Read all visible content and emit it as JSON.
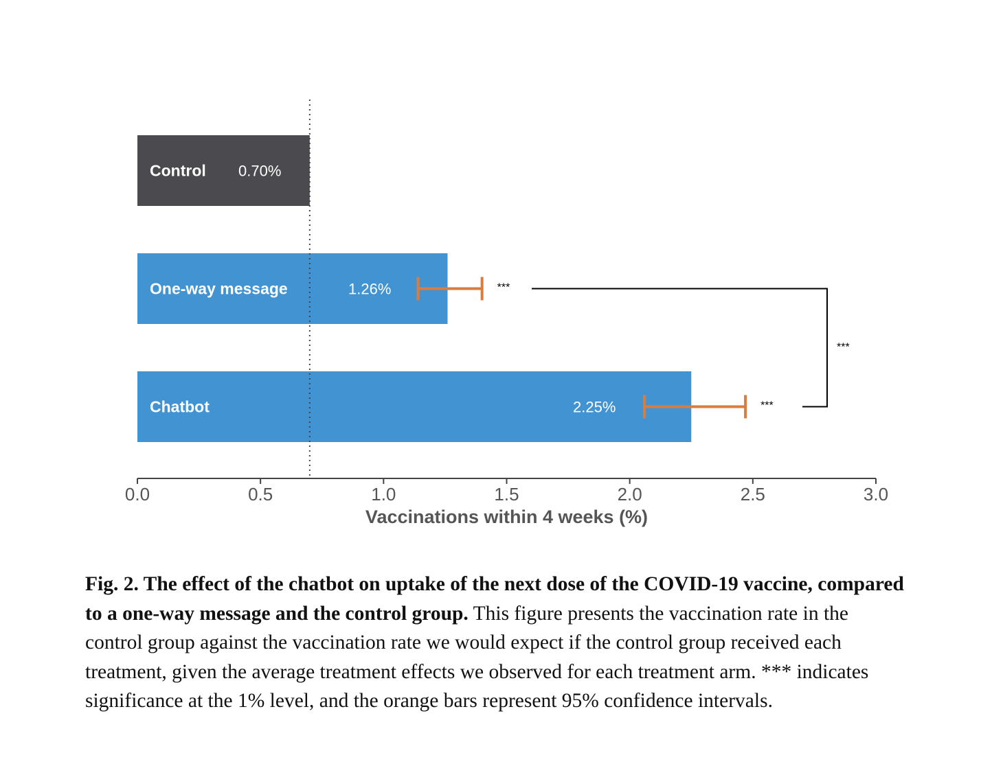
{
  "chart_data": {
    "type": "bar",
    "orientation": "horizontal",
    "categories": [
      "Control",
      "One-way message",
      "Chatbot"
    ],
    "values": [
      0.7,
      1.26,
      2.25
    ],
    "value_labels": [
      "0.70%",
      "1.26%",
      "2.25%"
    ],
    "ci_95": [
      null,
      [
        1.14,
        1.4
      ],
      [
        2.06,
        2.47
      ]
    ],
    "significance_vs_control": [
      "",
      "***",
      "***"
    ],
    "bracket": {
      "between": [
        "One-way message",
        "Chatbot"
      ],
      "label": "***"
    },
    "reference_line": 0.7,
    "xlabel": "Vaccinations within 4 weeks (%)",
    "xlim": [
      0.0,
      3.0
    ],
    "xticks": [
      "0.0",
      "0.5",
      "1.0",
      "1.5",
      "2.0",
      "2.5",
      "3.0"
    ],
    "colors": {
      "control": "#4a4a4f",
      "treatment": "#4293d1",
      "ci": "#d97c40",
      "axis": "#444444"
    }
  },
  "caption": {
    "bold": "Fig. 2. The effect of the chatbot on uptake of the next dose of the COVID-19 vaccine, compared to a one-way message and the control group.",
    "text": " This figure presents the vaccination rate in the control group against the vaccination rate we would expect if the control group received each treatment, given the average treatment effects we observed for each treatment arm. *** indicates significance at the 1% level, and the orange bars represent 95% confidence intervals."
  }
}
